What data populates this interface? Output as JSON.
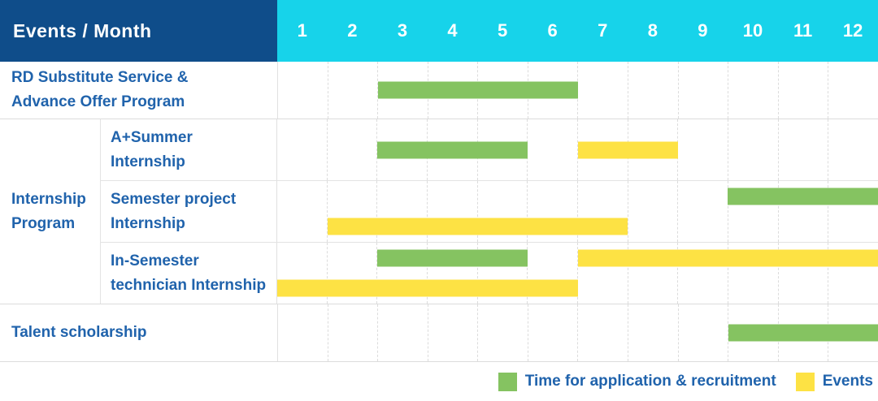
{
  "header": {
    "title": "Events / Month"
  },
  "colors": {
    "header_bg": "#0f4d8a",
    "months_bg": "#17d3ea",
    "application": "#85c361",
    "event": "#fde244",
    "text": "#2063ac"
  },
  "chart_data": {
    "type": "gantt",
    "x_unit": "month",
    "x_ticks": [
      "1",
      "2",
      "3",
      "4",
      "5",
      "6",
      "7",
      "8",
      "9",
      "10",
      "11",
      "12"
    ],
    "x_range": [
      1,
      12
    ],
    "group_label": "Internship Program",
    "group_label_lines": [
      "Internship",
      "Program"
    ],
    "rows": [
      {
        "label": "RD Substitute Service & Advance Offer Program",
        "label_lines": [
          "RD Substitute Service &",
          "Advance Offer Program"
        ],
        "group": false,
        "lines": [
          [
            {
              "type": "application",
              "start": 3,
              "end": 6
            }
          ]
        ]
      },
      {
        "label": "A+Summer Internship",
        "label_lines": [
          "A+Summer",
          "Internship"
        ],
        "group": true,
        "lines": [
          [
            {
              "type": "application",
              "start": 3,
              "end": 5
            },
            {
              "type": "event",
              "start": 7,
              "end": 8
            }
          ]
        ]
      },
      {
        "label": "Semester project Internship",
        "label_lines": [
          "Semester project",
          "Internship"
        ],
        "group": true,
        "lines": [
          [
            {
              "type": "application",
              "start": 10,
              "end": 12
            }
          ],
          [
            {
              "type": "event",
              "start": 2,
              "end": 7
            }
          ]
        ]
      },
      {
        "label": "In-Semester technician Internship",
        "label_lines": [
          "In-Semester",
          "technician Internship"
        ],
        "group": true,
        "lines": [
          [
            {
              "type": "application",
              "start": 3,
              "end": 5
            },
            {
              "type": "event",
              "start": 7,
              "end": 12
            }
          ],
          [
            {
              "type": "event",
              "start": 1,
              "end": 6
            }
          ]
        ]
      },
      {
        "label": "Talent scholarship",
        "label_lines": [
          "Talent scholarship"
        ],
        "group": false,
        "lines": [
          [
            {
              "type": "application",
              "start": 10,
              "end": 12
            }
          ]
        ]
      }
    ],
    "legend": [
      {
        "type": "application",
        "label": "Time for application & recruitment"
      },
      {
        "type": "event",
        "label": "Events"
      }
    ]
  }
}
